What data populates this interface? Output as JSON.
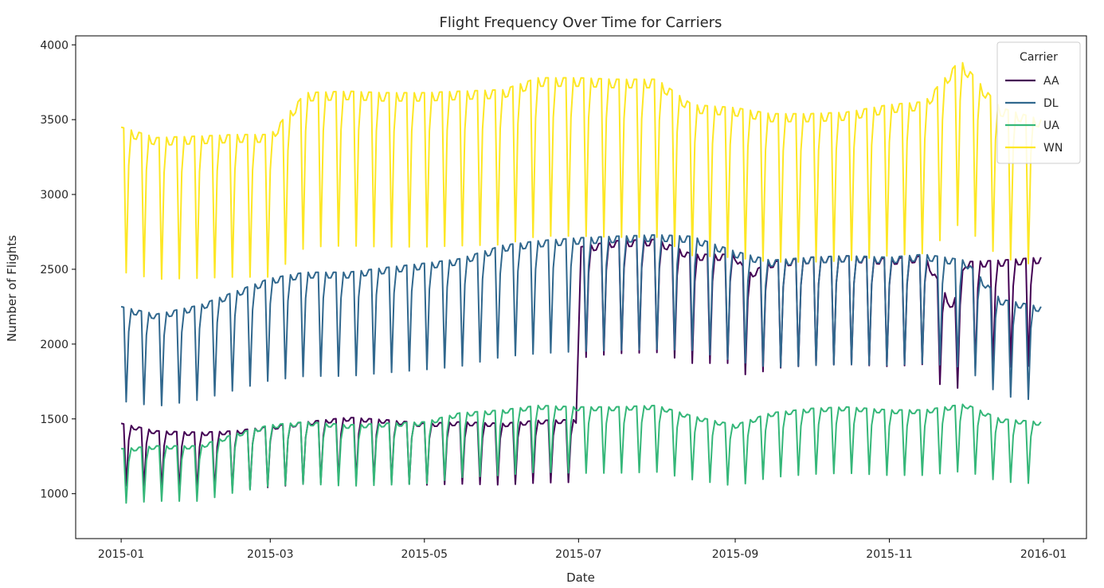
{
  "chart_data": {
    "type": "line",
    "title": "Flight Frequency Over Time for Carriers",
    "xlabel": "Date",
    "ylabel": "Number of Flights",
    "xlim": [
      "2014-12-14",
      "2016-01-18"
    ],
    "ylim": [
      700,
      4060
    ],
    "x_ticks": [
      "2015-01",
      "2015-03",
      "2015-05",
      "2015-07",
      "2015-09",
      "2015-11",
      "2016-01"
    ],
    "y_ticks": [
      1000,
      1500,
      2000,
      2500,
      3000,
      3500,
      4000
    ],
    "grid": false,
    "legend": {
      "title": "Carrier",
      "position": "top-right"
    },
    "series": [
      {
        "name": "AA",
        "color": "#440154",
        "points": [
          [
            "2015-01-01",
            1470
          ],
          [
            "2015-01-15",
            1420
          ],
          [
            "2015-02-01",
            1410
          ],
          [
            "2015-02-15",
            1420
          ],
          [
            "2015-03-01",
            1450
          ],
          [
            "2015-03-15",
            1480
          ],
          [
            "2015-04-01",
            1510
          ],
          [
            "2015-04-15",
            1495
          ],
          [
            "2015-05-01",
            1470
          ],
          [
            "2015-05-15",
            1480
          ],
          [
            "2015-06-01",
            1470
          ],
          [
            "2015-06-15",
            1490
          ],
          [
            "2015-06-30",
            1495
          ],
          [
            "2015-07-02",
            2650
          ],
          [
            "2015-07-15",
            2690
          ],
          [
            "2015-08-01",
            2700
          ],
          [
            "2015-08-15",
            2600
          ],
          [
            "2015-09-01",
            2600
          ],
          [
            "2015-09-06",
            2470
          ],
          [
            "2015-09-15",
            2550
          ],
          [
            "2015-10-01",
            2580
          ],
          [
            "2015-10-15",
            2590
          ],
          [
            "2015-11-01",
            2570
          ],
          [
            "2015-11-15",
            2590
          ],
          [
            "2015-11-26",
            2250
          ],
          [
            "2015-12-01",
            2550
          ],
          [
            "2015-12-15",
            2560
          ],
          [
            "2015-12-31",
            2580
          ]
        ]
      },
      {
        "name": "DL",
        "color": "#31688e",
        "points": [
          [
            "2015-01-01",
            2250
          ],
          [
            "2015-01-15",
            2200
          ],
          [
            "2015-02-01",
            2260
          ],
          [
            "2015-02-15",
            2350
          ],
          [
            "2015-03-01",
            2440
          ],
          [
            "2015-03-15",
            2480
          ],
          [
            "2015-04-01",
            2480
          ],
          [
            "2015-04-15",
            2510
          ],
          [
            "2015-05-01",
            2540
          ],
          [
            "2015-05-15",
            2570
          ],
          [
            "2015-06-01",
            2660
          ],
          [
            "2015-06-15",
            2690
          ],
          [
            "2015-07-01",
            2710
          ],
          [
            "2015-07-15",
            2720
          ],
          [
            "2015-08-01",
            2730
          ],
          [
            "2015-08-15",
            2720
          ],
          [
            "2015-09-01",
            2620
          ],
          [
            "2015-09-15",
            2560
          ],
          [
            "2015-10-01",
            2580
          ],
          [
            "2015-10-15",
            2590
          ],
          [
            "2015-11-01",
            2580
          ],
          [
            "2015-11-15",
            2600
          ],
          [
            "2015-12-01",
            2560
          ],
          [
            "2015-12-15",
            2300
          ],
          [
            "2015-12-31",
            2250
          ]
        ]
      },
      {
        "name": "UA",
        "color": "#35b779",
        "points": [
          [
            "2015-01-01",
            1300
          ],
          [
            "2015-01-15",
            1320
          ],
          [
            "2015-02-01",
            1320
          ],
          [
            "2015-02-15",
            1400
          ],
          [
            "2015-03-01",
            1460
          ],
          [
            "2015-03-15",
            1480
          ],
          [
            "2015-04-01",
            1460
          ],
          [
            "2015-04-15",
            1470
          ],
          [
            "2015-05-01",
            1480
          ],
          [
            "2015-05-15",
            1540
          ],
          [
            "2015-06-01",
            1560
          ],
          [
            "2015-06-15",
            1590
          ],
          [
            "2015-07-01",
            1580
          ],
          [
            "2015-07-15",
            1580
          ],
          [
            "2015-08-01",
            1590
          ],
          [
            "2015-08-15",
            1520
          ],
          [
            "2015-09-01",
            1460
          ],
          [
            "2015-09-15",
            1540
          ],
          [
            "2015-10-01",
            1570
          ],
          [
            "2015-10-15",
            1580
          ],
          [
            "2015-11-01",
            1560
          ],
          [
            "2015-11-15",
            1560
          ],
          [
            "2015-12-01",
            1600
          ],
          [
            "2015-12-15",
            1500
          ],
          [
            "2015-12-31",
            1480
          ]
        ]
      },
      {
        "name": "WN",
        "color": "#fde725",
        "points": [
          [
            "2015-01-01",
            3450
          ],
          [
            "2015-01-15",
            3380
          ],
          [
            "2015-02-01",
            3390
          ],
          [
            "2015-02-15",
            3400
          ],
          [
            "2015-03-01",
            3400
          ],
          [
            "2015-03-15",
            3680
          ],
          [
            "2015-04-01",
            3690
          ],
          [
            "2015-04-15",
            3680
          ],
          [
            "2015-05-01",
            3680
          ],
          [
            "2015-05-15",
            3690
          ],
          [
            "2015-06-01",
            3700
          ],
          [
            "2015-06-15",
            3780
          ],
          [
            "2015-07-01",
            3780
          ],
          [
            "2015-07-15",
            3770
          ],
          [
            "2015-08-01",
            3770
          ],
          [
            "2015-08-15",
            3600
          ],
          [
            "2015-09-01",
            3580
          ],
          [
            "2015-09-15",
            3540
          ],
          [
            "2015-10-01",
            3540
          ],
          [
            "2015-10-15",
            3550
          ],
          [
            "2015-11-01",
            3600
          ],
          [
            "2015-11-15",
            3620
          ],
          [
            "2015-11-29",
            3900
          ],
          [
            "2015-12-15",
            3580
          ],
          [
            "2015-12-31",
            3500
          ]
        ]
      }
    ]
  }
}
